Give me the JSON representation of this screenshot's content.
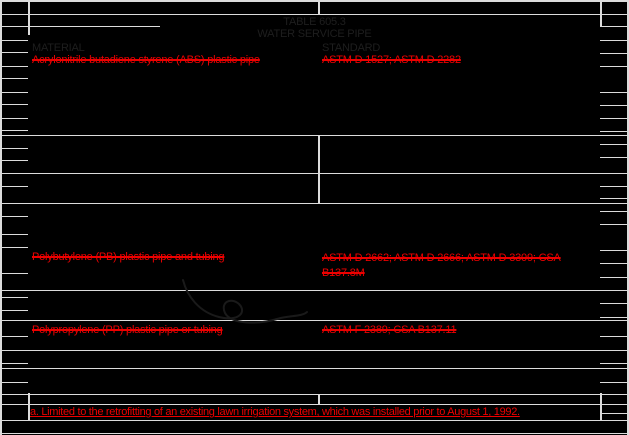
{
  "page": {
    "background": "#000000",
    "grid_color": "#dcdcdc",
    "deleted_text_color": "#ee0000",
    "added_text_color": "#ee0000",
    "faint_text_color": "#1e1e1e"
  },
  "table": {
    "title_line1": "TABLE 605.3",
    "title_line2": "WATER SERVICE PIPE",
    "header": {
      "material": "MATERIAL",
      "standard": "STANDARD"
    },
    "rows": [
      {
        "material": "Acrylonitrile butadiene styrene (ABS) plastic pipe",
        "standard": "ASTM D 1527; ASTM D 2282"
      },
      {
        "material": "Polybutylene (PB) plastic pipe and tubing",
        "standard": "ASTM D 2662; ASTM D 2666; ASTM D 3309; CSA B137.8M"
      },
      {
        "material": "Polypropylene (PP) plastic pipe or tubing",
        "standard": "ASTM F 2389; CSA B137.11"
      }
    ],
    "footnote": "a. Limited to the retrofitting of an existing lawn irrigation system, which was installed prior to August 1, 1992."
  }
}
